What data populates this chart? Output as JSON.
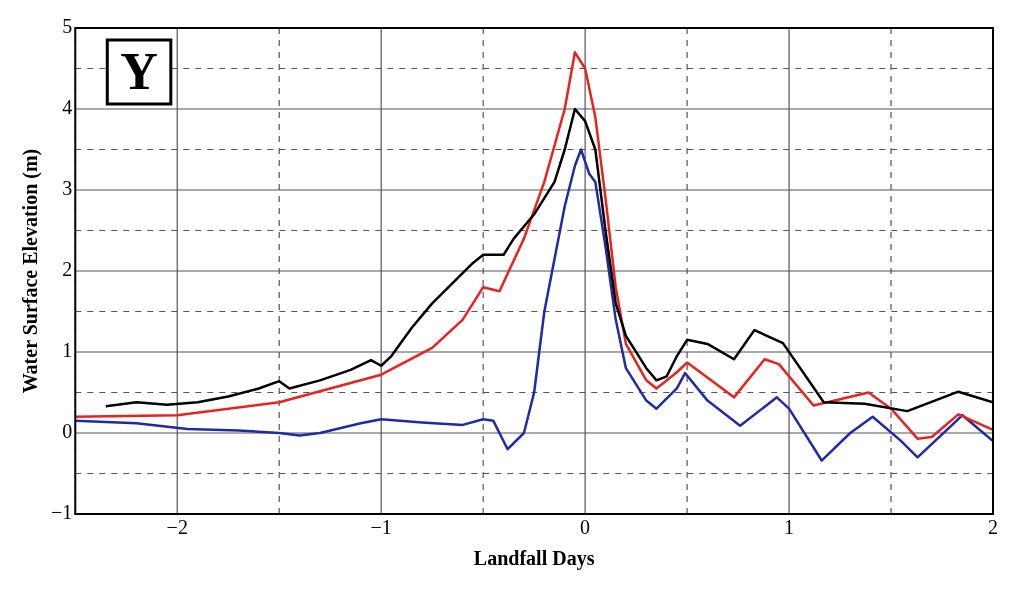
{
  "chart_data": {
    "type": "line",
    "xlabel": "Landfall Days",
    "ylabel": "Water Surface Elevation (m)",
    "annotations": [
      "Y"
    ],
    "xlim": [
      -2.5,
      2
    ],
    "ylim": [
      -1,
      5
    ],
    "xticks": [
      {
        "value": -2.5,
        "label": null
      },
      -2,
      {
        "value": -1.5,
        "label": null
      },
      -1,
      {
        "value": -0.5,
        "label": null
      },
      0,
      {
        "value": 0.5,
        "label": null
      },
      1,
      {
        "value": 1.5,
        "label": null
      },
      2
    ],
    "yticks": [
      -1,
      {
        "value": -0.5,
        "label": null
      },
      0,
      {
        "value": 0.5,
        "label": null
      },
      1,
      {
        "value": 1.5,
        "label": null
      },
      2,
      {
        "value": 2.5,
        "label": null
      },
      3,
      {
        "value": 3.5,
        "label": null
      },
      4,
      {
        "value": 4.5,
        "label": null
      },
      5
    ],
    "grid": true,
    "legend": false,
    "marker": "none",
    "line_style": "solid",
    "series": [
      {
        "color": "#000000",
        "x": [
          -2.35,
          -2.2,
          -2.05,
          -1.9,
          -1.75,
          -1.6,
          -1.5,
          -1.45,
          -1.3,
          -1.15,
          -1.05,
          -1.0,
          -0.95,
          -0.85,
          -0.75,
          -0.65,
          -0.55,
          -0.5,
          -0.4,
          -0.35,
          -0.25,
          -0.15,
          -0.1,
          -0.05,
          0.0,
          0.05,
          0.1,
          0.15,
          0.2,
          0.3,
          0.35,
          0.4,
          0.45,
          0.5,
          0.6,
          0.73,
          0.83,
          0.97,
          1.17,
          1.37,
          1.58,
          1.83,
          2.0
        ],
        "values": [
          0.33,
          0.38,
          0.35,
          0.38,
          0.45,
          0.55,
          0.64,
          0.55,
          0.65,
          0.78,
          0.9,
          0.83,
          0.95,
          1.3,
          1.6,
          1.85,
          2.1,
          2.2,
          2.2,
          2.4,
          2.7,
          3.1,
          3.5,
          4.0,
          3.85,
          3.5,
          2.5,
          1.6,
          1.2,
          0.8,
          0.65,
          0.7,
          0.95,
          1.15,
          1.1,
          0.91,
          1.27,
          1.11,
          0.38,
          0.36,
          0.27,
          0.51,
          0.38
        ]
      },
      {
        "color": "#e8231f",
        "x": [
          -2.5,
          -2.0,
          -1.5,
          -1.0,
          -0.75,
          -0.6,
          -0.5,
          -0.42,
          -0.3,
          -0.2,
          -0.1,
          -0.05,
          0.0,
          0.05,
          0.1,
          0.15,
          0.2,
          0.3,
          0.35,
          0.45,
          0.5,
          0.73,
          0.88,
          0.95,
          1.12,
          1.39,
          1.5,
          1.63,
          1.7,
          1.83,
          2.0
        ],
        "values": [
          0.2,
          0.22,
          0.38,
          0.72,
          1.05,
          1.4,
          1.8,
          1.75,
          2.4,
          3.1,
          4.0,
          4.7,
          4.5,
          3.9,
          2.9,
          1.8,
          1.1,
          0.65,
          0.55,
          0.75,
          0.87,
          0.44,
          0.91,
          0.85,
          0.34,
          0.5,
          0.3,
          -0.07,
          -0.05,
          0.23,
          0.04
        ]
      },
      {
        "color": "#1f2aa8",
        "x": [
          -2.5,
          -2.2,
          -1.95,
          -1.7,
          -1.5,
          -1.4,
          -1.3,
          -1.1,
          -1.0,
          -0.8,
          -0.6,
          -0.5,
          -0.45,
          -0.38,
          -0.3,
          -0.25,
          -0.2,
          -0.1,
          -0.05,
          -0.02,
          0.02,
          0.05,
          0.1,
          0.15,
          0.2,
          0.3,
          0.35,
          0.45,
          0.49,
          0.6,
          0.76,
          0.94,
          1.0,
          1.16,
          1.3,
          1.41,
          1.55,
          1.63,
          1.8,
          1.85,
          2.0
        ],
        "values": [
          0.15,
          0.12,
          0.05,
          0.03,
          0.0,
          -0.03,
          0.0,
          0.12,
          0.17,
          0.13,
          0.1,
          0.17,
          0.15,
          -0.2,
          0.0,
          0.5,
          1.5,
          2.8,
          3.3,
          3.5,
          3.2,
          3.1,
          2.3,
          1.4,
          0.8,
          0.4,
          0.3,
          0.55,
          0.74,
          0.4,
          0.09,
          0.44,
          0.3,
          -0.34,
          0.0,
          0.2,
          -0.1,
          -0.3,
          0.1,
          0.22,
          -0.1
        ]
      }
    ]
  }
}
